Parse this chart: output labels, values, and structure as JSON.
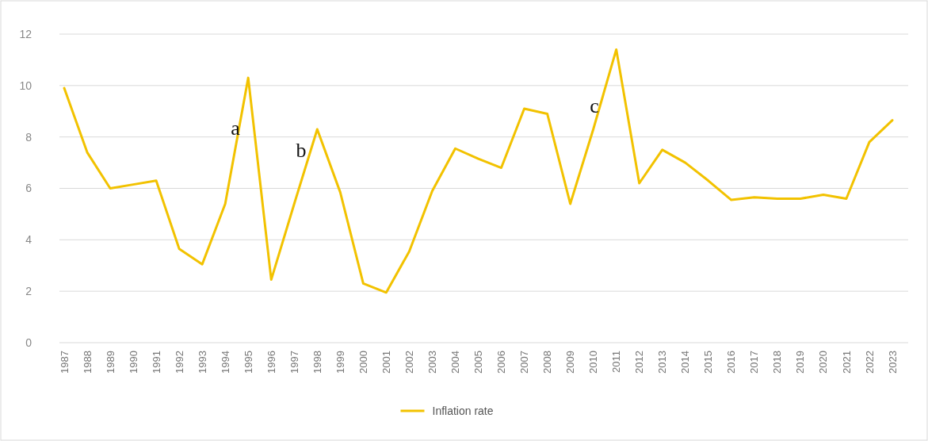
{
  "chart_data": {
    "type": "line",
    "categories": [
      "1987",
      "1988",
      "1989",
      "1990",
      "1991",
      "1992",
      "1993",
      "1994",
      "1995",
      "1996",
      "1997",
      "1998",
      "1999",
      "2000",
      "2001",
      "2002",
      "2003",
      "2004",
      "2005",
      "2006",
      "2007",
      "2008",
      "2009",
      "2010",
      "2011",
      "2012",
      "2013",
      "2014",
      "2015",
      "2016",
      "2017",
      "2018",
      "2019",
      "2020",
      "2021",
      "2022",
      "2023"
    ],
    "series": [
      {
        "name": "Inflation rate",
        "color": "#f2c200",
        "values": [
          9.9,
          7.4,
          6.0,
          6.15,
          6.3,
          3.65,
          3.05,
          5.4,
          10.3,
          2.45,
          5.4,
          8.3,
          5.85,
          2.3,
          1.95,
          3.55,
          5.9,
          7.55,
          7.15,
          6.8,
          9.1,
          8.9,
          5.4,
          8.3,
          11.4,
          6.2,
          7.5,
          7.0,
          6.3,
          5.55,
          5.65,
          5.6,
          5.6,
          5.75,
          5.6,
          7.8,
          8.65
        ]
      }
    ],
    "ylim": [
      0,
      12
    ],
    "yticks": [
      0,
      2,
      4,
      6,
      8,
      10,
      12
    ],
    "grid": "y",
    "legend": "bottom",
    "marker": "none",
    "line_style": "solid",
    "annotations": [
      "a",
      "b",
      "c"
    ]
  }
}
